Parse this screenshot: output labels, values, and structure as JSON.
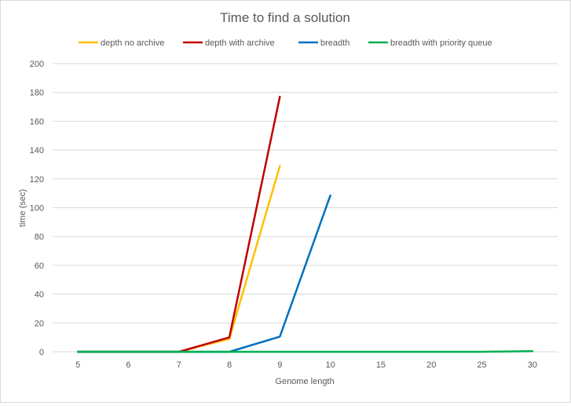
{
  "chart_data": {
    "type": "line",
    "title": "Time to find a solution",
    "xlabel": "Genome  length",
    "ylabel": "time (sec)",
    "categories": [
      "5",
      "6",
      "7",
      "8",
      "9",
      "10",
      "15",
      "20",
      "25",
      "30"
    ],
    "ylim": [
      0,
      200
    ],
    "yticks": [
      0,
      20,
      40,
      60,
      80,
      100,
      120,
      140,
      160,
      180,
      200
    ],
    "grid": true,
    "legend_position": "top",
    "series": [
      {
        "name": "depth no archive",
        "color": "#ffc000",
        "values": [
          0,
          0,
          0,
          9,
          129,
          null,
          null,
          null,
          null,
          null
        ]
      },
      {
        "name": "depth with archive",
        "color": "#c00000",
        "values": [
          0,
          0,
          0,
          10,
          177,
          null,
          null,
          null,
          null,
          null
        ]
      },
      {
        "name": "breadth",
        "color": "#0070c0",
        "values": [
          0,
          0,
          0,
          0,
          10.5,
          108.5,
          null,
          null,
          null,
          null
        ]
      },
      {
        "name": "breadth with priority queue",
        "color": "#00b050",
        "values": [
          0,
          0,
          0,
          0,
          0,
          0,
          0,
          0,
          0,
          0.5
        ]
      }
    ]
  }
}
